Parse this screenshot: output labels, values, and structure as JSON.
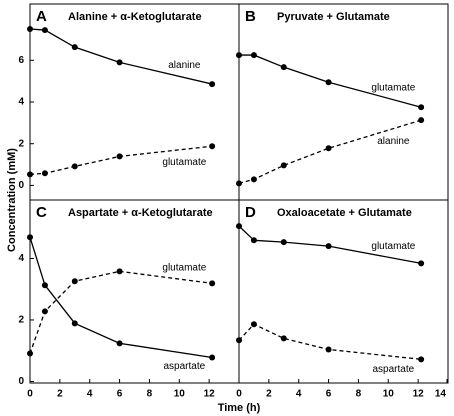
{
  "x_label": "Time (h)",
  "y_label": "Concentration (mM)",
  "chart_data": [
    {
      "type": "line",
      "panel": "A",
      "title": "Alanine + α-Ketoglutarate",
      "x": [
        0,
        1,
        3,
        6,
        12.2
      ],
      "xlim": [
        0,
        14
      ],
      "ylim": [
        -0.7,
        8.7
      ],
      "yticks": [
        0,
        2,
        4,
        6
      ],
      "series": [
        {
          "name": "alanine",
          "color": "#000000",
          "dash": false,
          "values": [
            7.5,
            7.45,
            6.63,
            5.9,
            4.86
          ]
        },
        {
          "name": "glutamate",
          "color": "#000000",
          "dash": true,
          "values": [
            0.53,
            0.58,
            0.91,
            1.39,
            1.88
          ]
        }
      ]
    },
    {
      "type": "line",
      "panel": "B",
      "title": "Pyruvate + Glutamate",
      "x": [
        0,
        1,
        3,
        6,
        12.2
      ],
      "xlim": [
        0,
        14
      ],
      "ylim": [
        -0.7,
        8.7
      ],
      "series": [
        {
          "name": "glutamate",
          "color": "#000000",
          "dash": false,
          "values": [
            6.25,
            6.25,
            5.67,
            4.95,
            3.75
          ]
        },
        {
          "name": "alanine",
          "color": "#000000",
          "dash": true,
          "values": [
            0.1,
            0.29,
            0.96,
            1.78,
            3.13
          ]
        }
      ]
    },
    {
      "type": "line",
      "panel": "C",
      "title": "Aspartate + α-Ketoglutarate",
      "x": [
        0,
        1,
        3,
        6,
        12.2
      ],
      "xlim": [
        0,
        14
      ],
      "ylim": [
        -0.05,
        5.9
      ],
      "yticks": [
        0,
        2,
        4
      ],
      "xticks": [
        0,
        2,
        4,
        6,
        8,
        10,
        12
      ],
      "series": [
        {
          "name": "aspartate",
          "color": "#000000",
          "dash": false,
          "values": [
            4.69,
            3.13,
            1.89,
            1.24,
            0.78
          ]
        },
        {
          "name": "glutamate",
          "color": "#000000",
          "dash": true,
          "values": [
            0.91,
            2.28,
            3.26,
            3.58,
            3.19
          ]
        }
      ]
    },
    {
      "type": "line",
      "panel": "D",
      "title": "Oxaloacetate + Glutamate",
      "x": [
        0,
        1,
        3,
        6,
        12.2
      ],
      "xlim": [
        0,
        14
      ],
      "ylim": [
        -0.05,
        5.9
      ],
      "xticks": [
        0,
        2,
        4,
        6,
        8,
        10,
        12,
        14
      ],
      "series": [
        {
          "name": "glutamate",
          "color": "#000000",
          "dash": false,
          "values": [
            5.05,
            4.59,
            4.53,
            4.4,
            3.84
          ]
        },
        {
          "name": "aspartate",
          "color": "#000000",
          "dash": true,
          "values": [
            1.34,
            1.86,
            1.4,
            1.04,
            0.72
          ]
        }
      ]
    }
  ]
}
